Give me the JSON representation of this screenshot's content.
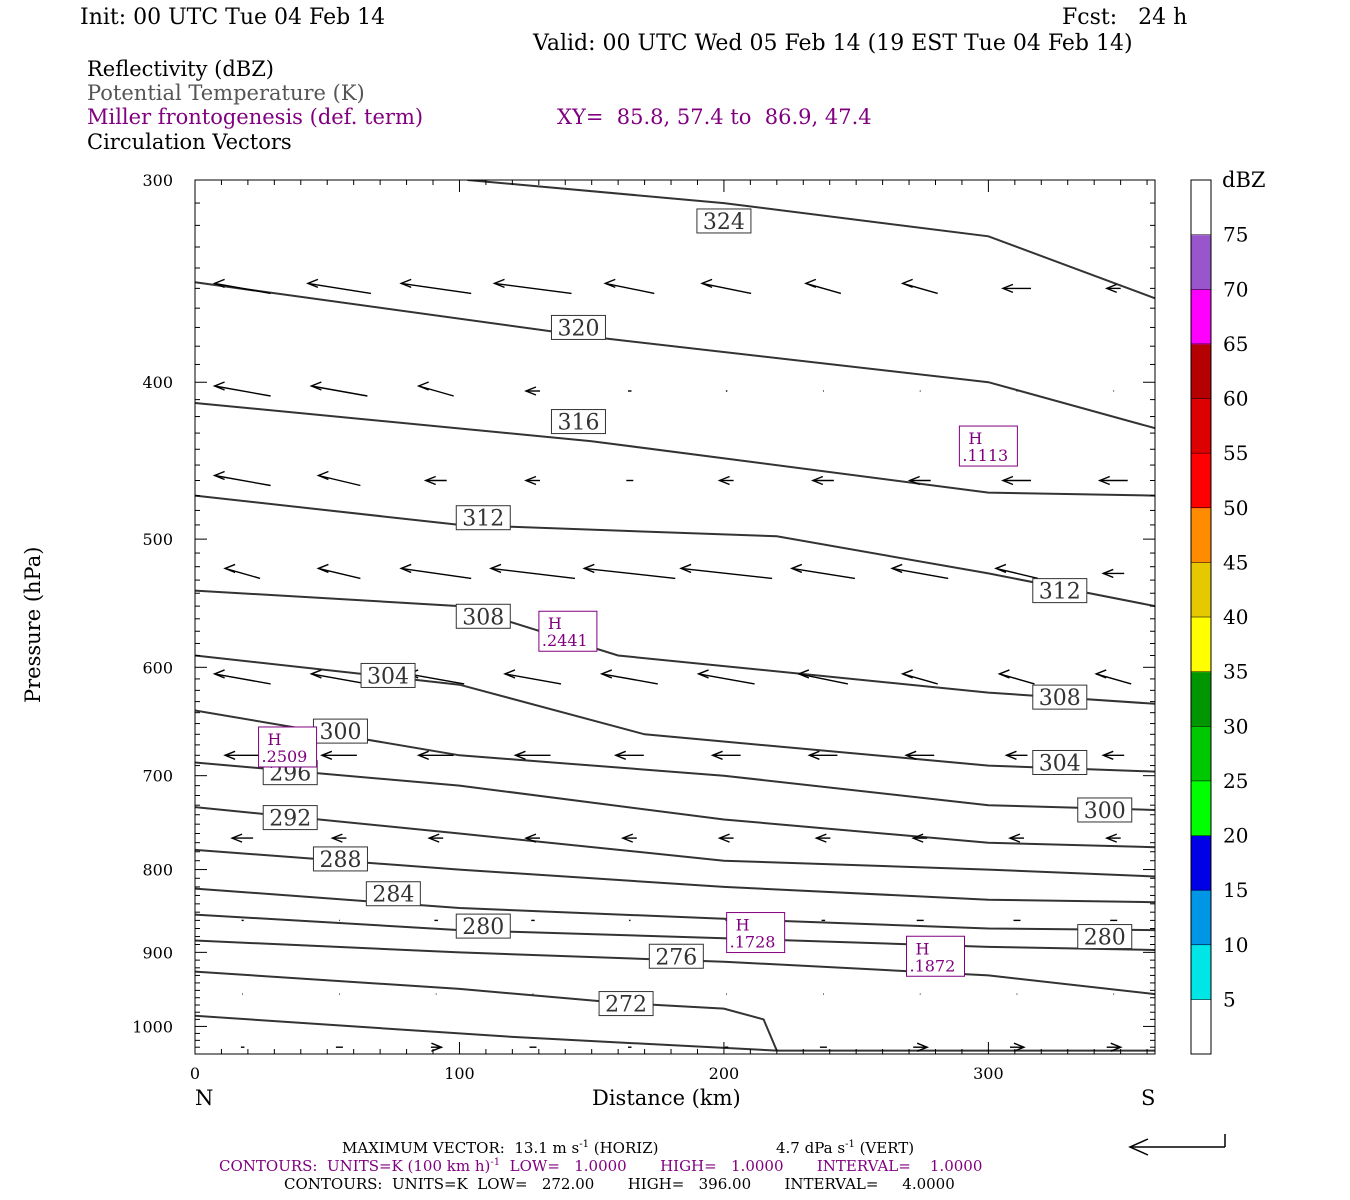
{
  "header": {
    "init": "Init: 00 UTC Tue 04 Feb 14",
    "fcst": "Fcst:   24 h",
    "valid": "Valid: 00 UTC Wed 05 Feb 14 (19 EST Tue 04 Feb 14)"
  },
  "legend": {
    "line1": "Reflectivity (dBZ)",
    "line2": "Potential Temperature (K)",
    "line3": "Miller frontogenesis (def. term)",
    "xy": "XY=  85.8, 57.4 to  86.9, 47.4",
    "line4": "Circulation Vectors"
  },
  "colors": {
    "frontogenesis": "#800080",
    "theta": "#333333",
    "vector": "#000000"
  },
  "chart_data": {
    "type": "cross-section",
    "xlabel": "Distance (km)",
    "ylabel": "Pressure (hPa)",
    "xlim": [
      0,
      363
    ],
    "ylim": [
      1040,
      300
    ],
    "yscale": "log",
    "x_ticks": [
      0,
      100,
      200,
      300
    ],
    "y_ticks": [
      300,
      400,
      500,
      600,
      700,
      800,
      900,
      1000
    ],
    "x_end_labels": {
      "left": "N",
      "right": "S"
    },
    "theta_contours": [
      {
        "level": 324,
        "points": [
          [
            103,
            300
          ],
          [
            200,
            310
          ],
          [
            300,
            325
          ],
          [
            363,
            355
          ]
        ],
        "label_x": 200
      },
      {
        "level": 320,
        "points": [
          [
            0,
            347
          ],
          [
            150,
            375
          ],
          [
            300,
            400
          ],
          [
            363,
            427
          ]
        ],
        "label_x": 145
      },
      {
        "level": 316,
        "points": [
          [
            0,
            412
          ],
          [
            150,
            435
          ],
          [
            300,
            468
          ],
          [
            363,
            470
          ]
        ],
        "label_x": 145
      },
      {
        "level": 312,
        "points": [
          [
            0,
            470
          ],
          [
            100,
            490
          ],
          [
            220,
            498
          ],
          [
            300,
            525
          ],
          [
            363,
            550
          ]
        ],
        "label_x": 100
      },
      {
        "level": 308,
        "points": [
          [
            0,
            538
          ],
          [
            100,
            550
          ],
          [
            160,
            590
          ],
          [
            300,
            622
          ],
          [
            363,
            632
          ]
        ],
        "label_x": 100
      },
      {
        "level": 304,
        "points": [
          [
            0,
            590
          ],
          [
            100,
            615
          ],
          [
            170,
            660
          ],
          [
            300,
            690
          ],
          [
            363,
            696
          ]
        ],
        "label_x": 73
      },
      {
        "level": 300,
        "points": [
          [
            0,
            638
          ],
          [
            100,
            680
          ],
          [
            200,
            700
          ],
          [
            300,
            730
          ],
          [
            363,
            735
          ]
        ],
        "label_x": 55
      },
      {
        "level": 296,
        "points": [
          [
            0,
            687
          ],
          [
            100,
            710
          ],
          [
            200,
            745
          ],
          [
            300,
            770
          ],
          [
            363,
            775
          ]
        ],
        "label_x": 36
      },
      {
        "level": 292,
        "points": [
          [
            0,
            732
          ],
          [
            100,
            760
          ],
          [
            200,
            790
          ],
          [
            300,
            800
          ],
          [
            363,
            808
          ]
        ],
        "label_x": 36
      },
      {
        "level": 288,
        "points": [
          [
            0,
            778
          ],
          [
            100,
            800
          ],
          [
            200,
            820
          ],
          [
            300,
            835
          ],
          [
            363,
            838
          ]
        ],
        "label_x": 55
      },
      {
        "level": 284,
        "points": [
          [
            0,
            822
          ],
          [
            100,
            845
          ],
          [
            200,
            858
          ],
          [
            300,
            870
          ],
          [
            363,
            872
          ]
        ],
        "label_x": 75
      },
      {
        "level": 280,
        "points": [
          [
            0,
            853
          ],
          [
            100,
            872
          ],
          [
            200,
            882
          ],
          [
            300,
            893
          ],
          [
            363,
            897
          ]
        ],
        "label_x": 110
      },
      {
        "level": 276,
        "points": [
          [
            0,
            885
          ],
          [
            100,
            900
          ],
          [
            200,
            912
          ],
          [
            300,
            930
          ],
          [
            363,
            955
          ]
        ],
        "label_x": 180
      },
      {
        "level": 272,
        "points": [
          [
            0,
            925
          ],
          [
            100,
            948
          ],
          [
            160,
            967
          ],
          [
            200,
            975
          ],
          [
            215,
            990
          ],
          [
            220,
            1035
          ]
        ],
        "label_x": 163
      },
      {
        "level": 268,
        "points": [
          [
            0,
            985
          ],
          [
            60,
            1000
          ],
          [
            120,
            1015
          ],
          [
            170,
            1025
          ],
          [
            220,
            1035
          ],
          [
            363,
            1035
          ]
        ],
        "label_x": null
      }
    ],
    "contour_labels": [
      {
        "text": "324",
        "x": 200,
        "p": 318
      },
      {
        "text": "320",
        "x": 145,
        "p": 370
      },
      {
        "text": "316",
        "x": 145,
        "p": 423
      },
      {
        "text": "312",
        "x": 109,
        "p": 485
      },
      {
        "text": "308",
        "x": 109,
        "p": 558
      },
      {
        "text": "304",
        "x": 73,
        "p": 607
      },
      {
        "text": "300",
        "x": 55,
        "p": 657
      },
      {
        "text": "296",
        "x": 36,
        "p": 697
      },
      {
        "text": "292",
        "x": 36,
        "p": 743
      },
      {
        "text": "288",
        "x": 55,
        "p": 788
      },
      {
        "text": "284",
        "x": 75,
        "p": 828
      },
      {
        "text": "280",
        "x": 109,
        "p": 867
      },
      {
        "text": "276",
        "x": 182,
        "p": 905
      },
      {
        "text": "272",
        "x": 163,
        "p": 968
      },
      {
        "text": "312",
        "x": 327,
        "p": 538
      },
      {
        "text": "308",
        "x": 327,
        "p": 626
      },
      {
        "text": "304",
        "x": 327,
        "p": 687
      },
      {
        "text": "300",
        "x": 344,
        "p": 735
      },
      {
        "text": "280",
        "x": 344,
        "p": 880
      }
    ],
    "frontogenesis_highs": [
      {
        "label": "H",
        "value": ".1113",
        "x": 300,
        "p": 438
      },
      {
        "label": "H",
        "value": ".2441",
        "x": 141,
        "p": 570
      },
      {
        "label": "H",
        "value": ".2509",
        "x": 35,
        "p": 672
      },
      {
        "label": "H",
        "value": ".1728",
        "x": 212,
        "p": 875
      },
      {
        "label": "H",
        "value": ".1872",
        "x": 280,
        "p": 905
      }
    ],
    "vector_rows": [
      {
        "p": 350,
        "u": [
          -8,
          -9,
          -10,
          -11,
          -7,
          -7,
          -5,
          -5,
          -4,
          -2,
          -1
        ]
      },
      {
        "p": 405,
        "u": [
          -8,
          -8,
          -5,
          -2,
          -0.5,
          -0.2,
          -0.1,
          -0.1,
          -0.1,
          -0.1,
          -0.5
        ]
      },
      {
        "p": 460,
        "u": [
          -8,
          -6,
          -3,
          -2,
          -1,
          -2,
          -3,
          -3,
          -4,
          -4,
          -4
        ]
      },
      {
        "p": 525,
        "u": [
          -5,
          -6,
          -10,
          -12,
          -13,
          -13,
          -9,
          -8,
          -6,
          -3,
          -7
        ]
      },
      {
        "p": 610,
        "u": [
          -8,
          -8,
          -8,
          -8,
          -8,
          -8,
          -7,
          -5,
          -5,
          -5,
          -3
        ]
      },
      {
        "p": 680,
        "u": [
          -5,
          -5,
          -5,
          -5,
          -4,
          -4,
          -4,
          -4,
          -3,
          -3,
          -1
        ]
      },
      {
        "p": 765,
        "u": [
          -3,
          -2,
          -2,
          -2,
          -2,
          -2,
          -2,
          -2,
          -2,
          -2,
          -3
        ]
      },
      {
        "p": 860,
        "u": [
          -0.3,
          0.1,
          0.5,
          0.5,
          0.2,
          -0.3,
          -0.5,
          -1,
          -1,
          -1,
          -1
        ]
      },
      {
        "p": 955,
        "u": [
          0.1,
          0.1,
          0.1,
          0.1,
          0.1,
          0.1,
          0.1,
          0.1,
          0.1,
          0.1,
          0.1
        ]
      },
      {
        "p": 1030,
        "u": [
          0.5,
          1,
          1.5,
          1,
          0.5,
          0.5,
          1,
          2,
          2,
          2,
          0
        ]
      }
    ],
    "colorbar": {
      "label": "dBZ",
      "ticks": [
        "5",
        "10",
        "15",
        "20",
        "25",
        "30",
        "35",
        "40",
        "45",
        "50",
        "55",
        "60",
        "65",
        "70",
        "75"
      ],
      "colors": [
        "#ffffff",
        "#00e5e5",
        "#0096e6",
        "#0000e6",
        "#00ff00",
        "#00c800",
        "#009600",
        "#ffff00",
        "#e6c800",
        "#ff8c00",
        "#ff0000",
        "#dc0000",
        "#b40000",
        "#ff00ff",
        "#9955cc",
        "#ffffff"
      ]
    }
  },
  "footer": {
    "max_vector_label": "MAXIMUM VECTOR:  13.1 m s",
    "max_vector_exp": "-1",
    "max_vector_horiz": " (HORIZ)",
    "max_vector_vert_val": "4.7 dPa s",
    "max_vector_vert_exp": "-1",
    "max_vector_vert": " (VERT)",
    "contours1_a": "CONTOURS:  UNITS=K (100 km h)",
    "contours1_exp": "-1",
    "contours1_b": "  LOW=   1.0000       HIGH=   1.0000       INTERVAL=    1.0000",
    "contours2": "CONTOURS:  UNITS=K  LOW=   272.00       HIGH=   396.00       INTERVAL=     4.0000"
  }
}
